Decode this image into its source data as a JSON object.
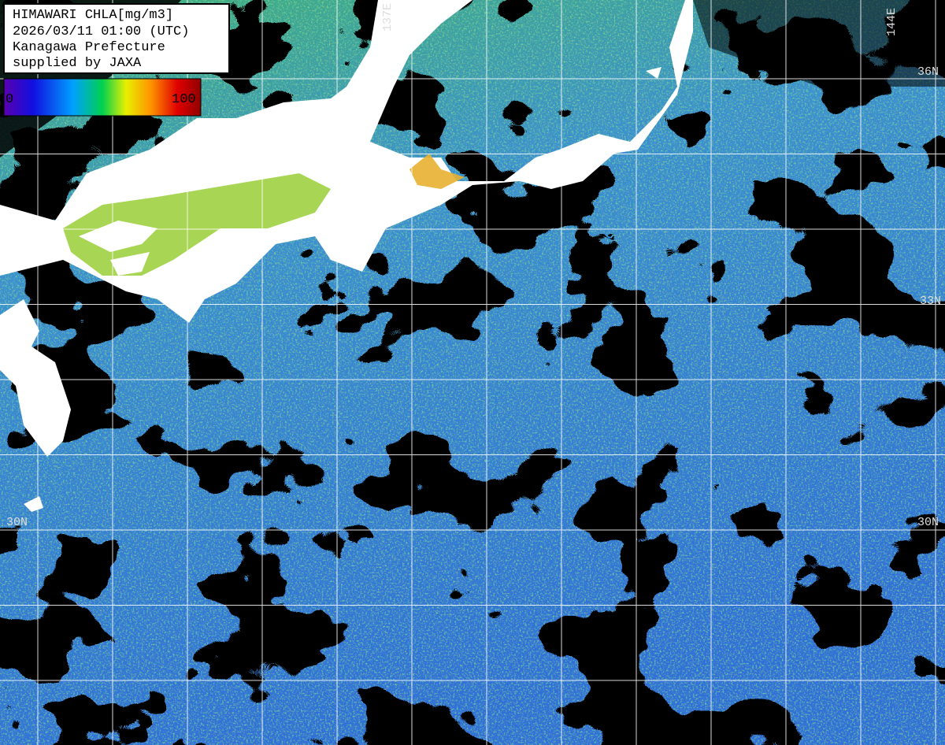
{
  "header": {
    "lines": [
      "HIMAWARI CHLA[mg/m3]",
      "2026/03/11 01:00 (UTC)",
      "Kanagawa Prefecture",
      "supplied by JAXA"
    ]
  },
  "colorbar": {
    "min_label": "0",
    "max_label": "100"
  },
  "grid_labels": {
    "lat": [
      "36N",
      "33N",
      "30N",
      "30N"
    ],
    "lon": [
      "137E",
      "144E"
    ]
  }
}
